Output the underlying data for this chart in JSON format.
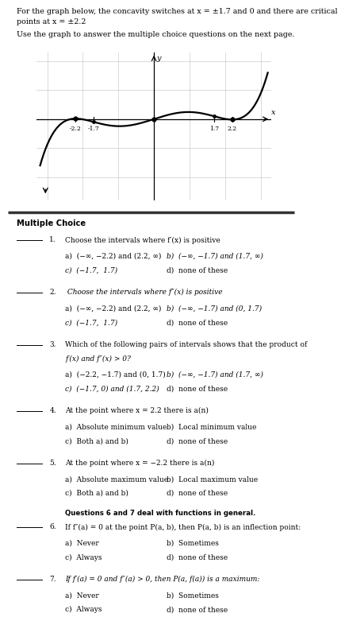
{
  "header_line1": "For the graph below, the concavity switches at x = ±1.7 and 0 and there are critical",
  "header_line2": "points at x = ±2.2",
  "subheader_text": "Use the graph to answer the multiple choice questions on the next page.",
  "x_ticks_labels": [
    "-2.2",
    "-1.7",
    "1.7",
    "2.2"
  ],
  "x_ticks_vals": [
    -2.2,
    -1.7,
    1.7,
    2.2
  ],
  "section_title": "Multiple Choice",
  "questions": [
    {
      "number": "1.",
      "q_text": "Choose the intervals where f′(x) is positive",
      "q_italic": false,
      "opt_a": "a)  (−∞, −2.2) and (2.2, ∞)",
      "opt_b": "b)  (−∞, −1.7) and (1.7, ∞)",
      "opt_c": "c)  (−1.7,  1.7)",
      "opt_d": "d)  none of these",
      "opt_b_italic": true,
      "opt_c_italic": true,
      "extra_before": null
    },
    {
      "number": "2.",
      "q_text": " Choose the intervals where f″(x) is positive",
      "q_italic": true,
      "opt_a": "a)  (−∞, −2.2) and (2.2, ∞)",
      "opt_b": "b)  (−∞, −1.7) and (0, 1.7)",
      "opt_c": "c)  (−1.7,  1.7)",
      "opt_d": "d)  none of these",
      "opt_b_italic": true,
      "opt_c_italic": true,
      "extra_before": null
    },
    {
      "number": "3.",
      "q_text": "Which of the following pairs of intervals shows that the product of",
      "q_text2": "f′(x) and f″(x) > 0?",
      "q_italic": false,
      "opt_a": "a)  (−2.2, −1.7) and (0, 1.7)",
      "opt_b": "b)  (−∞, −1.7) and (1.7, ∞)",
      "opt_c": "c)  (−1.7, 0) and (1.7, 2.2)",
      "opt_d": "d)  none of these",
      "opt_b_italic": true,
      "opt_c_italic": true,
      "extra_before": null
    },
    {
      "number": "4.",
      "q_text": "At the point where x = 2.2 there is a(n)",
      "q_italic": false,
      "opt_a": "a)  Absolute minimum value",
      "opt_b": "b)  Local minimum value",
      "opt_c": "c)  Both a) and b)",
      "opt_d": "d)  none of these",
      "opt_b_italic": false,
      "opt_c_italic": false,
      "extra_before": null
    },
    {
      "number": "5.",
      "q_text": "At the point where x = −2.2 there is a(n)",
      "q_italic": false,
      "opt_a": "a)  Absolute maximum value",
      "opt_b": "b)  Local maximum value",
      "opt_c": "c)  Both a) and b)",
      "opt_d": "d)  none of these",
      "opt_b_italic": false,
      "opt_c_italic": false,
      "extra_before": null
    },
    {
      "number": "6.",
      "q_text": "If f″(a) = 0 at the point P(a, b), then P(a, b) is an inflection point:",
      "q_italic": false,
      "opt_a": "a)  Never",
      "opt_b": "b)  Sometimes",
      "opt_c": "c)  Always",
      "opt_d": "d)  none of these",
      "opt_b_italic": false,
      "opt_c_italic": false,
      "extra_before": "Questions 6 and 7 deal with functions in general."
    },
    {
      "number": "7.",
      "q_text": "If f′(a) = 0 and f″(a) > 0, then P(a, f(a)) is a maximum:",
      "q_italic": true,
      "opt_a": "a)  Never",
      "opt_b": "b)  Sometimes",
      "opt_c": "c)  Always",
      "opt_d": "d)  none of these",
      "opt_b_italic": false,
      "opt_c_italic": false,
      "extra_before": null
    }
  ],
  "bg_color": "#ffffff",
  "curve_color": "#000000"
}
